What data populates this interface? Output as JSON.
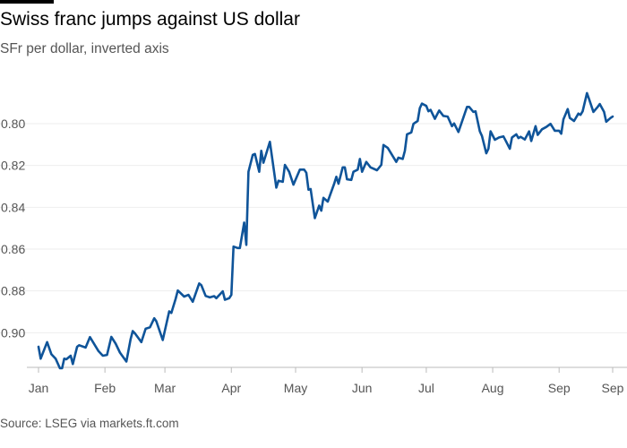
{
  "title": "Swiss franc jumps against US dollar",
  "subtitle": "SFr per dollar, inverted axis",
  "source": "Source: LSEG via markets.ft.com",
  "colors": {
    "line": "#0f5499",
    "grid": "#eeeeee",
    "axis": "#bbbbbb",
    "topbar": "#000000"
  },
  "chart_data": {
    "type": "line",
    "title": "Swiss franc jumps against US dollar",
    "subtitle": "SFr per dollar, inverted axis",
    "ylabel": "",
    "xlabel": "",
    "y_inverted": true,
    "ylim": [
      0.78,
      0.918
    ],
    "xlim": [
      "2025-01-01",
      "2025-09-26"
    ],
    "grid": true,
    "yticks": [
      0.8,
      0.82,
      0.84,
      0.86,
      0.88,
      0.9
    ],
    "ytick_labels": [
      "0.80",
      "0.82",
      "0.84",
      "0.86",
      "0.88",
      "0.90"
    ],
    "xticks": [
      {
        "label": "Jan",
        "date": "2025-01-01"
      },
      {
        "label": "Feb",
        "date": "2025-02-01"
      },
      {
        "label": "Mar",
        "date": "2025-03-01"
      },
      {
        "label": "Apr",
        "date": "2025-04-01"
      },
      {
        "label": "May",
        "date": "2025-05-01"
      },
      {
        "label": "Jun",
        "date": "2025-06-01"
      },
      {
        "label": "Jul",
        "date": "2025-07-01"
      },
      {
        "label": "Aug",
        "date": "2025-08-01"
      },
      {
        "label": "Sep",
        "date": "2025-09-01"
      },
      {
        "label": "Sep",
        "date": "2025-09-26"
      }
    ],
    "x": [
      "2025-01-01",
      "2025-01-02",
      "2025-01-05",
      "2025-01-07",
      "2025-01-09",
      "2025-01-11",
      "2025-01-12",
      "2025-01-13",
      "2025-01-14",
      "2025-01-16",
      "2025-01-17",
      "2025-01-19",
      "2025-01-20",
      "2025-01-23",
      "2025-01-25",
      "2025-01-29",
      "2025-01-31",
      "2025-02-02",
      "2025-02-04",
      "2025-02-06",
      "2025-02-08",
      "2025-02-11",
      "2025-02-13",
      "2025-02-14",
      "2025-02-15",
      "2025-02-18",
      "2025-02-20",
      "2025-02-22",
      "2025-02-24",
      "2025-02-25",
      "2025-02-28",
      "2025-03-03",
      "2025-03-04",
      "2025-03-06",
      "2025-03-07",
      "2025-03-10",
      "2025-03-12",
      "2025-03-14",
      "2025-03-17",
      "2025-03-18",
      "2025-03-20",
      "2025-03-22",
      "2025-03-24",
      "2025-03-25",
      "2025-03-28",
      "2025-03-29",
      "2025-03-31",
      "2025-04-01",
      "2025-04-02",
      "2025-04-04",
      "2025-04-05",
      "2025-04-07",
      "2025-04-08",
      "2025-04-09",
      "2025-04-11",
      "2025-04-12",
      "2025-04-14",
      "2025-04-15",
      "2025-04-16",
      "2025-04-19",
      "2025-04-22",
      "2025-04-23",
      "2025-04-25",
      "2025-04-26",
      "2025-04-28",
      "2025-04-30",
      "2025-05-03",
      "2025-05-05",
      "2025-05-06",
      "2025-05-07",
      "2025-05-08",
      "2025-05-10",
      "2025-05-12",
      "2025-05-13",
      "2025-05-14",
      "2025-05-16",
      "2025-05-17",
      "2025-05-19",
      "2025-05-20",
      "2025-05-21",
      "2025-05-23",
      "2025-05-24",
      "2025-05-25",
      "2025-05-27",
      "2025-05-28",
      "2025-05-30",
      "2025-05-31",
      "2025-06-01",
      "2025-06-03",
      "2025-06-05",
      "2025-06-08",
      "2025-06-10",
      "2025-06-11",
      "2025-06-13",
      "2025-06-17",
      "2025-06-18",
      "2025-06-20",
      "2025-06-21",
      "2025-06-22",
      "2025-06-24",
      "2025-06-25",
      "2025-06-27",
      "2025-06-28",
      "2025-06-29",
      "2025-07-01",
      "2025-07-02",
      "2025-07-03",
      "2025-07-05",
      "2025-07-07",
      "2025-07-09",
      "2025-07-11",
      "2025-07-13",
      "2025-07-14",
      "2025-07-16",
      "2025-07-18",
      "2025-07-20",
      "2025-07-21",
      "2025-07-23",
      "2025-07-24",
      "2025-07-26",
      "2025-07-27",
      "2025-07-29",
      "2025-07-30",
      "2025-07-31",
      "2025-08-02",
      "2025-08-04",
      "2025-08-06",
      "2025-08-07",
      "2025-08-09",
      "2025-08-10",
      "2025-08-12",
      "2025-08-13",
      "2025-08-14",
      "2025-08-16",
      "2025-08-18",
      "2025-08-19",
      "2025-08-21",
      "2025-08-22",
      "2025-08-24",
      "2025-08-26",
      "2025-08-28",
      "2025-08-30",
      "2025-09-01",
      "2025-09-02",
      "2025-09-03",
      "2025-09-05",
      "2025-09-06",
      "2025-09-08",
      "2025-09-10",
      "2025-09-11",
      "2025-09-12",
      "2025-09-14",
      "2025-09-15",
      "2025-09-17",
      "2025-09-19",
      "2025-09-20",
      "2025-09-22",
      "2025-09-23",
      "2025-09-25",
      "2025-09-26"
    ],
    "series": [
      {
        "values": [
          0.9067,
          0.9124,
          0.9045,
          0.9103,
          0.9124,
          0.917,
          0.917,
          0.9124,
          0.9127,
          0.911,
          0.915,
          0.9067,
          0.906,
          0.9071,
          0.9021,
          0.9088,
          0.911,
          0.9106,
          0.902,
          0.9052,
          0.9095,
          0.9138,
          0.9031,
          0.8992,
          0.9003,
          0.9045,
          0.8981,
          0.8974,
          0.8931,
          0.8945,
          0.9035,
          0.8898,
          0.8905,
          0.8838,
          0.8798,
          0.8827,
          0.8819,
          0.8852,
          0.8764,
          0.8773,
          0.8824,
          0.8831,
          0.8825,
          0.8835,
          0.8802,
          0.8842,
          0.8835,
          0.8819,
          0.8588,
          0.8595,
          0.8595,
          0.8473,
          0.858,
          0.823,
          0.8149,
          0.8145,
          0.823,
          0.813,
          0.8187,
          0.8087,
          0.8306,
          0.8273,
          0.8278,
          0.8197,
          0.823,
          0.8292,
          0.822,
          0.822,
          0.8235,
          0.8316,
          0.8313,
          0.8452,
          0.8392,
          0.8416,
          0.8355,
          0.8373,
          0.8344,
          0.8287,
          0.8254,
          0.8287,
          0.8209,
          0.8209,
          0.8266,
          0.8269,
          0.823,
          0.822,
          0.8169,
          0.823,
          0.8183,
          0.8209,
          0.8223,
          0.8197,
          0.8102,
          0.8116,
          0.8183,
          0.8163,
          0.8169,
          0.813,
          0.8051,
          0.8042,
          0.8001,
          0.7987,
          0.7926,
          0.7904,
          0.7915,
          0.7941,
          0.7934,
          0.7977,
          0.7937,
          0.7963,
          0.7966,
          0.8012,
          0.7999,
          0.804,
          0.798,
          0.792,
          0.792,
          0.7944,
          0.7941,
          0.8037,
          0.8059,
          0.8142,
          0.812,
          0.8037,
          0.8077,
          0.8066,
          0.8061,
          0.808,
          0.812,
          0.8066,
          0.8051,
          0.8069,
          0.8063,
          0.8076,
          0.8037,
          0.8083,
          0.8012,
          0.8054,
          0.8027,
          0.8016,
          0.8001,
          0.8034,
          0.8034,
          0.8048,
          0.798,
          0.793,
          0.7973,
          0.7987,
          0.7952,
          0.7958,
          0.7941,
          0.7854,
          0.7883,
          0.7944,
          0.792,
          0.7906,
          0.7944,
          0.7991,
          0.7973,
          0.7966
        ]
      }
    ]
  }
}
